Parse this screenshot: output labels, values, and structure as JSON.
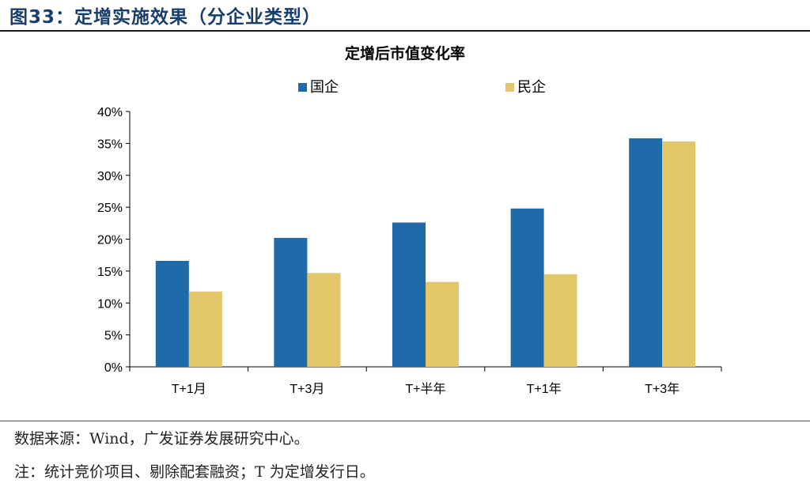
{
  "figure": {
    "title": "图33：定增实施效果（分企业类型）",
    "source": "数据来源：Wind，广发证券发展研究中心。",
    "note": "注：统计竞价项目、剔除配套融资；T 为定增发行日。"
  },
  "chart_data": {
    "type": "bar",
    "title": "定增后市值变化率",
    "categories": [
      "T+1月",
      "T+3月",
      "T+半年",
      "T+1年",
      "T+3年"
    ],
    "series": [
      {
        "name": "国企",
        "color": "#1f6aa8",
        "values": [
          16.6,
          20.2,
          22.6,
          24.8,
          35.8
        ]
      },
      {
        "name": "民企",
        "color": "#e3c667",
        "values": [
          11.8,
          14.7,
          13.3,
          14.5,
          35.3
        ]
      }
    ],
    "ylim": [
      0,
      40
    ],
    "yticks": [
      "0%",
      "5%",
      "10%",
      "15%",
      "20%",
      "25%",
      "30%",
      "35%",
      "40%"
    ],
    "xlabel": "",
    "ylabel": "",
    "legend": "top-center",
    "grid": false
  }
}
